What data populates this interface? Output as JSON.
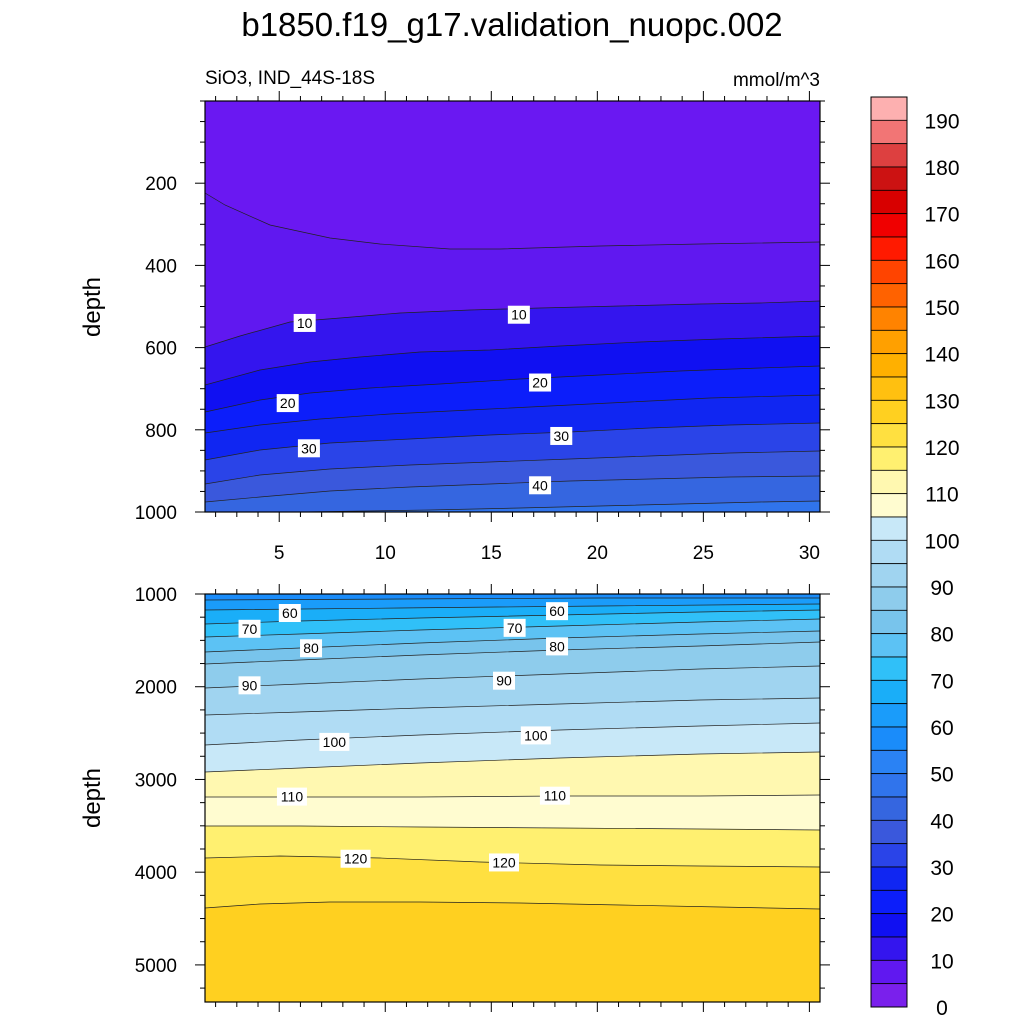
{
  "title": "b1850.f19_g17.validation_nuopc.002",
  "chart_data": [
    {
      "type": "contour",
      "panel": "upper",
      "left_label": "SiO3, IND_44S-18S",
      "right_label": "mmol/m^3",
      "xlabel": "",
      "ylabel": "depth",
      "xlim": [
        1.5,
        30.5
      ],
      "ylim": [
        0,
        1000
      ],
      "y_reversed": true,
      "xticks": [
        5,
        10,
        15,
        20,
        25,
        30
      ],
      "xtick_labels": [
        "5",
        "10",
        "15",
        "20",
        "25",
        "30"
      ],
      "yticks": [
        200,
        400,
        600,
        800,
        1000
      ],
      "ytick_labels": [
        "200",
        "400",
        "600",
        "800",
        "1000"
      ],
      "contour_labels": [
        {
          "text": "10",
          "x": 6.2,
          "y": 540
        },
        {
          "text": "10",
          "x": 16.3,
          "y": 520
        },
        {
          "text": "20",
          "x": 5.4,
          "y": 735
        },
        {
          "text": "20",
          "x": 17.3,
          "y": 685
        },
        {
          "text": "30",
          "x": 6.4,
          "y": 845
        },
        {
          "text": "30",
          "x": 18.3,
          "y": 815
        },
        {
          "text": "40",
          "x": 17.3,
          "y": 935
        }
      ]
    },
    {
      "type": "contour",
      "panel": "lower",
      "xlabel": "",
      "ylabel": "depth",
      "xlim": [
        1.5,
        30.5
      ],
      "ylim": [
        1000,
        5400
      ],
      "y_reversed": true,
      "yticks": [
        1000,
        2000,
        3000,
        4000,
        5000
      ],
      "ytick_labels": [
        "1000",
        "2000",
        "3000",
        "4000",
        "5000"
      ],
      "contour_labels": [
        {
          "text": "60",
          "x": 5.5,
          "y": 1205
        },
        {
          "text": "60",
          "x": 18.1,
          "y": 1185
        },
        {
          "text": "70",
          "x": 3.6,
          "y": 1375
        },
        {
          "text": "70",
          "x": 16.1,
          "y": 1365
        },
        {
          "text": "80",
          "x": 6.5,
          "y": 1585
        },
        {
          "text": "80",
          "x": 18.1,
          "y": 1565
        },
        {
          "text": "90",
          "x": 3.6,
          "y": 1985
        },
        {
          "text": "90",
          "x": 15.6,
          "y": 1935
        },
        {
          "text": "100",
          "x": 7.6,
          "y": 2595
        },
        {
          "text": "100",
          "x": 17.1,
          "y": 2525
        },
        {
          "text": "110",
          "x": 5.6,
          "y": 3185
        },
        {
          "text": "110",
          "x": 18.0,
          "y": 3175
        },
        {
          "text": "120",
          "x": 8.6,
          "y": 3855
        },
        {
          "text": "120",
          "x": 15.6,
          "y": 3895
        }
      ]
    }
  ],
  "colorbar": {
    "labels": [
      "190",
      "180",
      "170",
      "160",
      "150",
      "140",
      "130",
      "120",
      "110",
      "100",
      "90",
      "80",
      "70",
      "60",
      "50",
      "40",
      "30",
      "20",
      "10",
      "0"
    ],
    "colors_top_to_bottom": [
      "#FDB0B0",
      "#F27575",
      "#DD4040",
      "#CC1212",
      "#D80000",
      "#F00000",
      "#FF1A00",
      "#FF4400",
      "#FF6200",
      "#FF8300",
      "#FFA000",
      "#FFB000",
      "#FFC010",
      "#FFD020",
      "#FFE040",
      "#FFF070",
      "#FFF8B0",
      "#FFFCD0",
      "#C8E8F8",
      "#B0DCF4",
      "#A0D4F0",
      "#8ECCEC",
      "#78C4EC",
      "#5CC2F4",
      "#30C0F8",
      "#1AAEF8",
      "#1A9CFA",
      "#1A8CFA",
      "#2A82F4",
      "#3074EC",
      "#3566E0",
      "#3A58DC",
      "#2A44E8",
      "#1026F2",
      "#0C1EFA",
      "#1010F2",
      "#3415EE",
      "#6018F0",
      "#7A20EC"
    ]
  },
  "upper_bands": [
    {
      "color": "#6018F0",
      "level": "0"
    },
    {
      "color": "#3415EE",
      "level": "5"
    },
    {
      "color": "#1010F2",
      "level": "10"
    },
    {
      "color": "#0C1EFA",
      "level": "15"
    },
    {
      "color": "#1026F2",
      "level": "20"
    },
    {
      "color": "#2A44E8",
      "level": "25"
    },
    {
      "color": "#3A58DC",
      "level": "30"
    },
    {
      "color": "#3566E0",
      "level": "35"
    },
    {
      "color": "#3074EC",
      "level": "40"
    },
    {
      "color": "#2A82F4",
      "level": "45"
    }
  ],
  "lower_bands": [
    {
      "color": "#1A9CFA",
      "level": "50"
    },
    {
      "color": "#1AAEF8",
      "level": "55"
    },
    {
      "color": "#30C0F8",
      "level": "60"
    },
    {
      "color": "#5CC2F4",
      "level": "65"
    },
    {
      "color": "#78C4EC",
      "level": "70"
    },
    {
      "color": "#8ECCEC",
      "level": "75"
    },
    {
      "color": "#A0D4F0",
      "level": "80"
    },
    {
      "color": "#B0DCF4",
      "level": "85"
    },
    {
      "color": "#C8E8F8",
      "level": "90"
    },
    {
      "color": "#FFF8B0",
      "level": "95"
    },
    {
      "color": "#FFFCD0",
      "level": "100"
    },
    {
      "color": "#FFF070",
      "level": "105"
    },
    {
      "color": "#FFE040",
      "level": "110"
    },
    {
      "color": "#FFD020",
      "level": "115"
    },
    {
      "color": "#FFC010",
      "level": "120"
    },
    {
      "color": "#FFB000",
      "level": "125"
    },
    {
      "color": "#FFA000",
      "level": "130"
    }
  ]
}
